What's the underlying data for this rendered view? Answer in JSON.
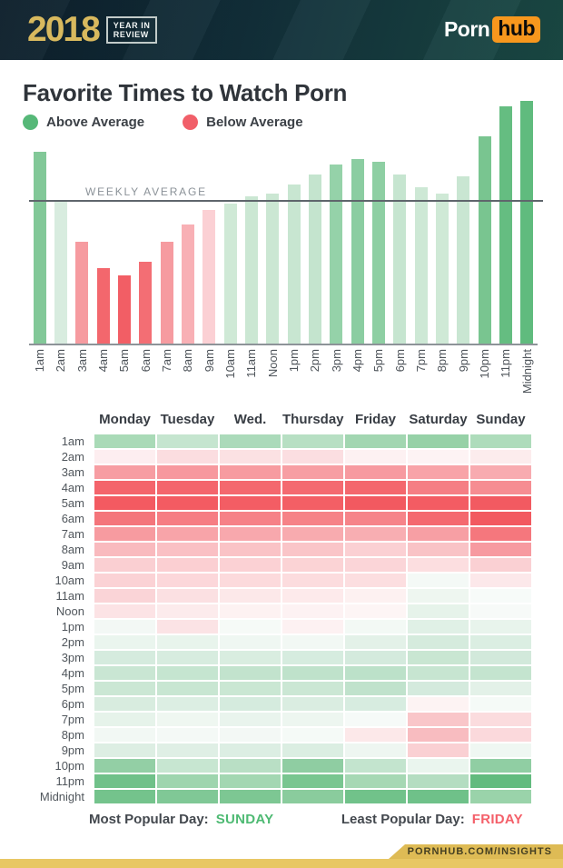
{
  "header": {
    "year": "2018",
    "year_badge_line1": "YEAR IN",
    "year_badge_line2": "REVIEW",
    "brand_left": "Porn",
    "brand_right": "hub",
    "brand_accent": "#f7971d"
  },
  "title": "Favorite Times to Watch Porn",
  "legend": [
    {
      "label": "Above Average",
      "color": "#56b878"
    },
    {
      "label": "Below Average",
      "color": "#f15f69"
    }
  ],
  "chart_data": [
    {
      "type": "bar",
      "title": "Hourly popularity relative to weekly average (average = 100)",
      "categories": [
        "1am",
        "2am",
        "3am",
        "4am",
        "5am",
        "6am",
        "7am",
        "8am",
        "9am",
        "10am",
        "11am",
        "Noon",
        "1pm",
        "2pm",
        "3pm",
        "4pm",
        "5pm",
        "6pm",
        "7pm",
        "8pm",
        "9pm",
        "10pm",
        "11pm",
        "Midnight"
      ],
      "values": [
        135,
        101,
        72,
        53,
        48,
        58,
        72,
        84,
        94,
        99,
        104,
        106,
        112,
        119,
        126,
        130,
        128,
        119,
        110,
        106,
        118,
        146,
        167,
        171
      ],
      "bar_colors": [
        "#82c898",
        "#d8ecdf",
        "#f69ba0",
        "#f3676d",
        "#f25e65",
        "#f36e74",
        "#f69ba0",
        "#f8b0b5",
        "#fbd0d4",
        "#cfe9d6",
        "#cbe7d3",
        "#cbe7d3",
        "#c8e6d1",
        "#c4e4ce",
        "#95d2a9",
        "#8bcda1",
        "#8ecfa3",
        "#c6e5d0",
        "#cde8d5",
        "#cfe9d6",
        "#c9e6d2",
        "#79c590",
        "#65bd81",
        "#60bb7e"
      ],
      "average_line": {
        "label": "WEEKLY AVERAGE",
        "value": 100
      },
      "ylim": [
        0,
        175
      ],
      "grid": false,
      "legend_position": "top-left"
    },
    {
      "type": "heatmap",
      "columns": [
        "Monday",
        "Tuesday",
        "Wed.",
        "Thursday",
        "Friday",
        "Saturday",
        "Sunday"
      ],
      "rows": [
        "1am",
        "2am",
        "3am",
        "4am",
        "5am",
        "6am",
        "7am",
        "8am",
        "9am",
        "10am",
        "11am",
        "Noon",
        "1pm",
        "2pm",
        "3pm",
        "4pm",
        "5pm",
        "6pm",
        "7pm",
        "8pm",
        "9pm",
        "10pm",
        "11pm",
        "Midnight"
      ],
      "cell_colors": [
        [
          "#a9dab7",
          "#c5e5cf",
          "#abdaba",
          "#b7dfc3",
          "#a2d6b1",
          "#96d1a7",
          "#aedcbb"
        ],
        [
          "#fdeef0",
          "#fbdde0",
          "#fbe1e3",
          "#fbdee1",
          "#fdf1f2",
          "#fdf3f4",
          "#fceced"
        ],
        [
          "#f79da2",
          "#f7989e",
          "#f79ba0",
          "#f79ea3",
          "#f79aa0",
          "#f8a3a8",
          "#f8abb0"
        ],
        [
          "#f4646b",
          "#f4656c",
          "#f4686e",
          "#f46a70",
          "#f4676d",
          "#f57e84",
          "#f68d92"
        ],
        [
          "#f35a61",
          "#f35b62",
          "#f35d64",
          "#f35f65",
          "#f25960",
          "#f35c63",
          "#f25a61"
        ],
        [
          "#f4757b",
          "#f67d83",
          "#f68187",
          "#f68287",
          "#f68489",
          "#f4696f",
          "#f25960"
        ],
        [
          "#f79ba0",
          "#f8a4a9",
          "#f8a8ad",
          "#f8abaf",
          "#f8aeb2",
          "#f79fa4",
          "#f5777d"
        ],
        [
          "#f9babe",
          "#fac0c4",
          "#fac3c6",
          "#fac5c8",
          "#fbd0d3",
          "#f9c3c6",
          "#f79aa0"
        ],
        [
          "#facfd2",
          "#fbcfd2",
          "#fbd1d4",
          "#fbd3d5",
          "#fbd5d8",
          "#fcdee0",
          "#fad0d3"
        ],
        [
          "#fbd2d5",
          "#fcd7da",
          "#fcdadc",
          "#fcdcde",
          "#fcdee0",
          "#f4f9f6",
          "#fce8ea"
        ],
        [
          "#fad4d7",
          "#fbe0e2",
          "#fce8e9",
          "#fdeaeb",
          "#fdf1f1",
          "#eef6f0",
          "#f7fbf9"
        ],
        [
          "#fce3e5",
          "#fcebec",
          "#fdf2f2",
          "#fdf2f3",
          "#fdf5f5",
          "#e6f3ea",
          "#f7faf8"
        ],
        [
          "#f3f8f5",
          "#fbe3e5",
          "#f6faf7",
          "#fdf1f2",
          "#f3f9f5",
          "#e0f0e6",
          "#e8f4ec"
        ],
        [
          "#eaf5ee",
          "#e8f4ec",
          "#eff7f2",
          "#f2f8f4",
          "#e3f1e8",
          "#d5ebdd",
          "#dbeee2"
        ],
        [
          "#d5ebde",
          "#d7ecdf",
          "#d9ede0",
          "#d6ecdf",
          "#d4eadd",
          "#c9e6d2",
          "#d2e9db"
        ],
        [
          "#c9e6d3",
          "#c5e5d0",
          "#c2e3cd",
          "#bfe2cb",
          "#bce1c9",
          "#c7e5d1",
          "#c4e4cf"
        ],
        [
          "#cbe7d4",
          "#c8e6d2",
          "#cae7d3",
          "#cbe7d4",
          "#c0e2cc",
          "#d4eadd",
          "#e3f1e8"
        ],
        [
          "#d8ecdf",
          "#dceee3",
          "#d5ebde",
          "#daede1",
          "#d7ece0",
          "#fdf3f3",
          "#f5faf7"
        ],
        [
          "#e6f3ea",
          "#eff7f1",
          "#e9f4ed",
          "#edf6f0",
          "#f6faf8",
          "#f9c6c9",
          "#fbdcde"
        ],
        [
          "#f2f8f4",
          "#f4f9f6",
          "#f3f8f5",
          "#f5faf7",
          "#fce8e9",
          "#f8bcc0",
          "#fbd9dc"
        ],
        [
          "#ddeee3",
          "#dfefe5",
          "#dceee3",
          "#dbeee2",
          "#eef6f1",
          "#fad0d3",
          "#eff7f2"
        ],
        [
          "#93cfa5",
          "#c7e6d1",
          "#b9dfc5",
          "#8fcda2",
          "#c3e4ce",
          "#eaf5ee",
          "#90cea3"
        ],
        [
          "#70c189",
          "#9ed5ae",
          "#a3d7b2",
          "#79c690",
          "#a6d8b4",
          "#b4ddc1",
          "#62bb7e"
        ],
        [
          "#74c38c",
          "#80c896",
          "#7dc793",
          "#8acc9d",
          "#71c28a",
          "#6fc189",
          "#9ad3aa"
        ]
      ]
    }
  ],
  "footer": {
    "most_label": "Most Popular Day:",
    "most_value": "SUNDAY",
    "most_color": "#4eba73",
    "least_label": "Least Popular Day:",
    "least_value": "FRIDAY",
    "least_color": "#f4606a"
  },
  "bottom": {
    "insights_text": "PORNHUB.COM/INSIGHTS"
  }
}
